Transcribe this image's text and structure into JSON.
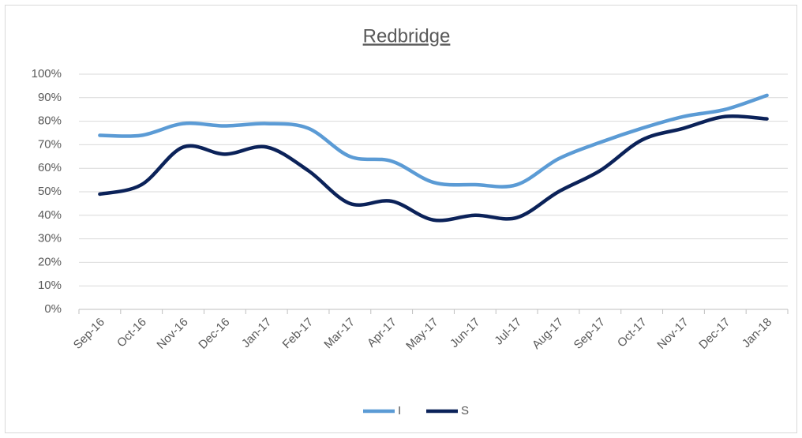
{
  "chart_data": {
    "type": "line",
    "title": "Redbridge",
    "categories": [
      "Sep-16",
      "Oct-16",
      "Nov-16",
      "Dec-16",
      "Jan-17",
      "Feb-17",
      "Mar-17",
      "Apr-17",
      "May-17",
      "Jun-17",
      "Jul-17",
      "Aug-17",
      "Sep-17",
      "Oct-17",
      "Nov-17",
      "Dec-17",
      "Jan-18"
    ],
    "series": [
      {
        "name": "I",
        "color": "#5b9bd5",
        "values": [
          74,
          74,
          79,
          78,
          79,
          77,
          65,
          63,
          54,
          53,
          53,
          64,
          71,
          77,
          82,
          85,
          91
        ]
      },
      {
        "name": "S",
        "color": "#0b2259",
        "values": [
          49,
          53,
          69,
          66,
          69,
          59,
          45,
          46,
          38,
          40,
          39,
          50,
          59,
          72,
          77,
          82,
          81
        ]
      }
    ],
    "ylim": [
      0,
      100
    ],
    "yticks": [
      {
        "value": 0,
        "label": "0%"
      },
      {
        "value": 10,
        "label": "10%"
      },
      {
        "value": 20,
        "label": "20%"
      },
      {
        "value": 30,
        "label": "30%"
      },
      {
        "value": 40,
        "label": "40%"
      },
      {
        "value": 50,
        "label": "50%"
      },
      {
        "value": 60,
        "label": "60%"
      },
      {
        "value": 70,
        "label": "70%"
      },
      {
        "value": 80,
        "label": "80%"
      },
      {
        "value": 90,
        "label": "90%"
      },
      {
        "value": 100,
        "label": "100%"
      }
    ],
    "grid": true,
    "legend": "bottom",
    "smooth": true
  }
}
